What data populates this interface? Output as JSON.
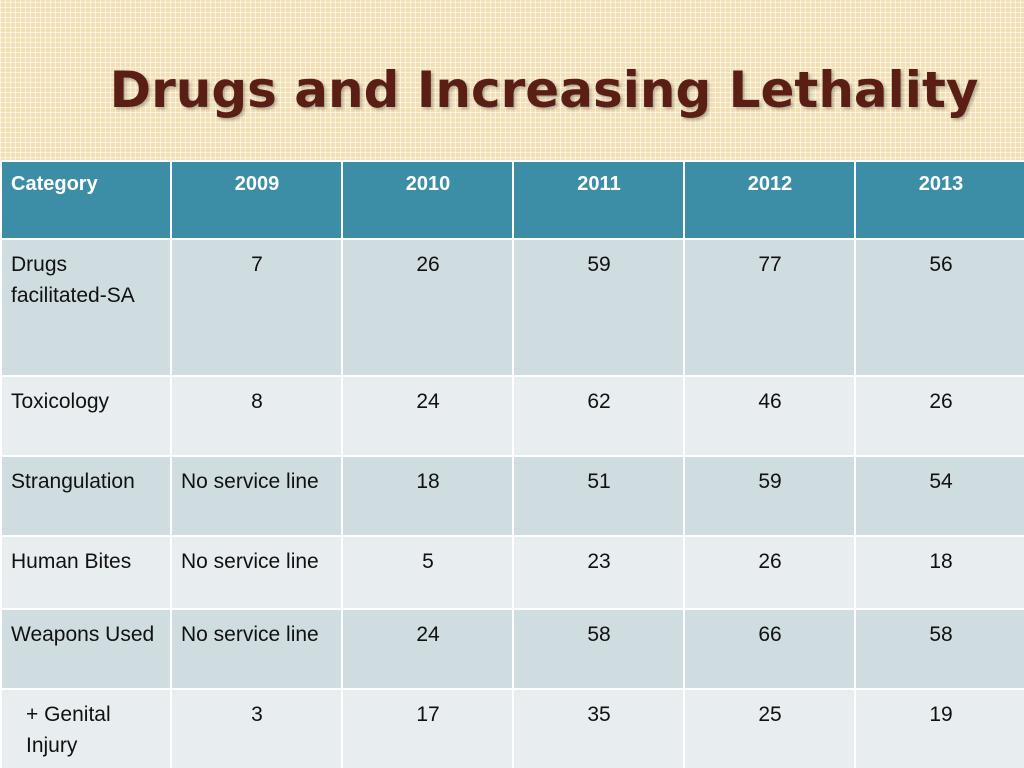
{
  "title": "Drugs and Increasing Lethality",
  "table": {
    "headers": [
      "Category",
      "2009",
      "2010",
      "2011",
      "2012",
      "2013"
    ],
    "rows": [
      {
        "category": "Drugs facilitated-SA",
        "values": [
          "7",
          "26",
          "59",
          "77",
          "56"
        ]
      },
      {
        "category": "Toxicology",
        "values": [
          "8",
          "24",
          "62",
          "46",
          "26"
        ]
      },
      {
        "category": "Strangulation",
        "values": [
          "No service line",
          "18",
          "51",
          "59",
          "54"
        ]
      },
      {
        "category": "Human Bites",
        "values": [
          "No service line",
          "5",
          "23",
          "26",
          "18"
        ]
      },
      {
        "category": "Weapons Used",
        "values": [
          "No service line",
          "24",
          "58",
          "66",
          "58"
        ]
      },
      {
        "category": "+ Genital Injury",
        "values": [
          "3",
          "17",
          "35",
          "25",
          "19"
        ]
      }
    ]
  }
}
